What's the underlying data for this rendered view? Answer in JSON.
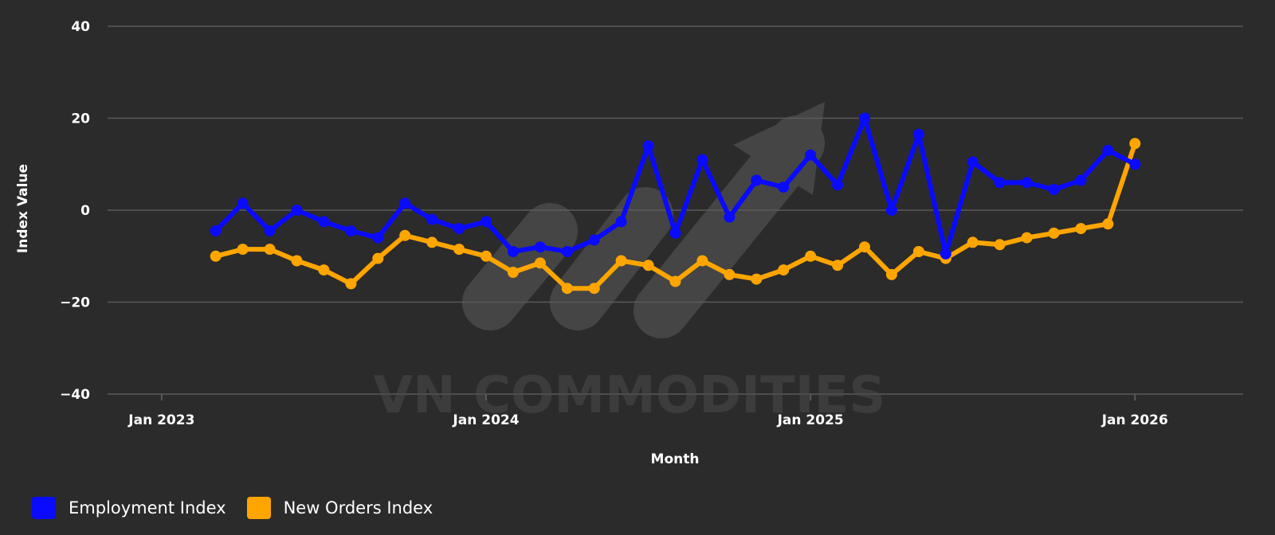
{
  "colors": {
    "background": "#2b2b2b",
    "grid": "#5a5a5a",
    "employment": "#0a0aff",
    "new_orders": "#ffa500"
  },
  "watermark": {
    "text": "VN COMMODITIES"
  },
  "legend": {
    "items": [
      {
        "label": "Employment Index",
        "color": "#0a0aff"
      },
      {
        "label": "New Orders Index",
        "color": "#ffa500"
      }
    ]
  },
  "chart_data": {
    "type": "line",
    "title": "",
    "xlabel": "Month",
    "ylabel": "Index Value",
    "ylim": [
      -40,
      40
    ],
    "xlim": [
      "2022-11",
      "2026-05"
    ],
    "yticks": [
      -40,
      -20,
      0,
      20,
      40
    ],
    "ytick_labels": [
      "−40",
      "−20",
      "0",
      "20",
      "40"
    ],
    "xticks": [
      "2023-01",
      "2024-01",
      "2025-01",
      "2026-01"
    ],
    "xtick_labels": [
      "Jan 2023",
      "Jan 2024",
      "Jan 2025",
      "Jan 2026"
    ],
    "grid": true,
    "legend_position": "bottom-left",
    "x": [
      "2023-03",
      "2023-04",
      "2023-05",
      "2023-06",
      "2023-07",
      "2023-08",
      "2023-09",
      "2023-10",
      "2023-11",
      "2023-12",
      "2024-01",
      "2024-02",
      "2024-03",
      "2024-04",
      "2024-05",
      "2024-06",
      "2024-07",
      "2024-08",
      "2024-09",
      "2024-10",
      "2024-11",
      "2024-12",
      "2025-01",
      "2025-02",
      "2025-03",
      "2025-04",
      "2025-05",
      "2025-06",
      "2025-07",
      "2025-08",
      "2025-09",
      "2025-10",
      "2025-11",
      "2025-12",
      "2026-01"
    ],
    "series": [
      {
        "name": "Employment Index",
        "color": "#0a0aff",
        "values": [
          -4.5,
          1.5,
          -4.5,
          0,
          -2.5,
          -4.5,
          -6,
          1.5,
          -2,
          -4,
          -2.5,
          -9,
          -8,
          -9,
          -6.5,
          -2.5,
          14,
          -5,
          11,
          -1.5,
          6.5,
          5,
          12,
          5.5,
          20,
          0,
          16.5,
          -9.5,
          10.5,
          6,
          6,
          4.5,
          6.5,
          13,
          10
        ]
      },
      {
        "name": "New Orders Index",
        "color": "#ffa500",
        "values": [
          -10,
          -8.5,
          -8.5,
          -11,
          -13,
          -16,
          -10.5,
          -5.5,
          -7,
          -8.5,
          -10,
          -13.5,
          -11.5,
          -17,
          -17,
          -11,
          -12,
          -15.5,
          -11,
          -14,
          -15,
          -13,
          -10,
          -12,
          -8,
          -14,
          -9,
          -10.5,
          -7,
          -7.5,
          -6,
          -5,
          -4,
          -3,
          14.5
        ]
      }
    ]
  }
}
